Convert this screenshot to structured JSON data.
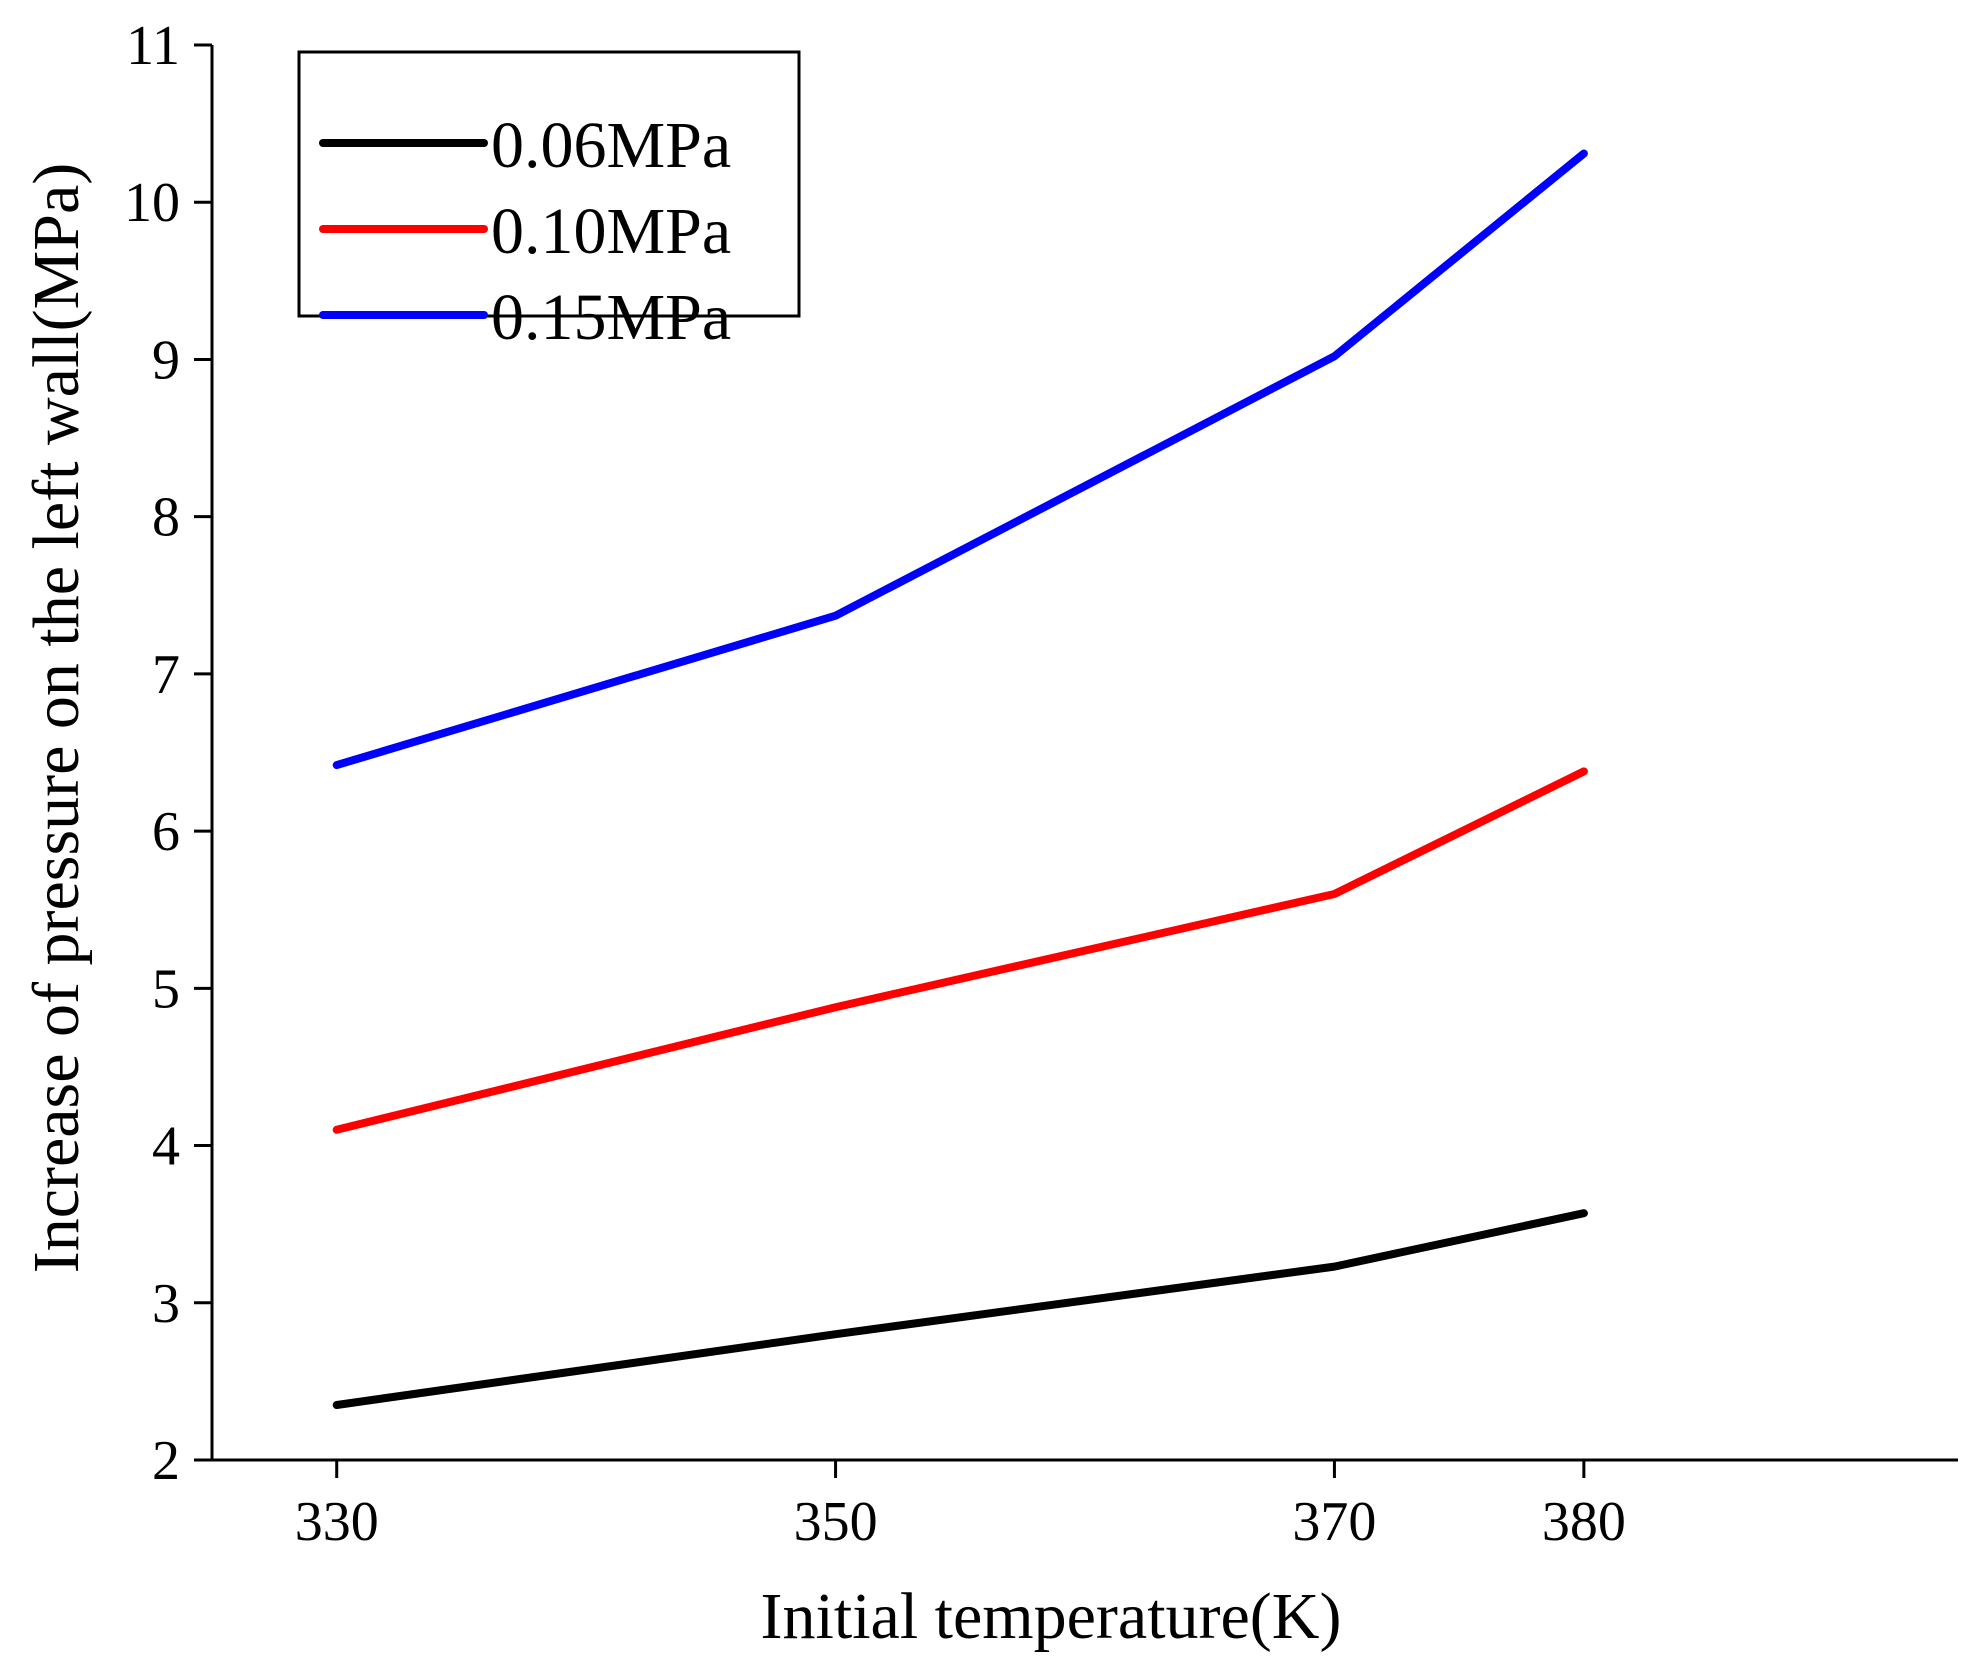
{
  "chart_data": {
    "type": "line",
    "title": "",
    "xlabel": "Initial temperature(K)",
    "ylabel": "Increase of pressure on the left wall(MPa)",
    "xlim": [
      325,
      395
    ],
    "ylim": [
      2,
      11
    ],
    "xticks": [
      330,
      350,
      370,
      380
    ],
    "xtick_labels": [
      "330",
      "350",
      "370",
      "380"
    ],
    "yticks": [
      2,
      3,
      4,
      5,
      6,
      7,
      8,
      9,
      10,
      11
    ],
    "ytick_labels": [
      "2",
      "3",
      "4",
      "5",
      "6",
      "7",
      "8",
      "9",
      "10",
      "11"
    ],
    "grid": false,
    "legend_position": "top-left",
    "x": [
      330,
      350,
      370,
      380
    ],
    "series": [
      {
        "name": "0.06MPa",
        "color": "#000000",
        "values": [
          2.35,
          2.8,
          3.23,
          3.57
        ]
      },
      {
        "name": "0.10MPa",
        "color": "#ff0000",
        "values": [
          4.1,
          4.88,
          5.6,
          6.38
        ]
      },
      {
        "name": "0.15MPa",
        "color": "#0000ff",
        "values": [
          6.42,
          7.37,
          9.02,
          10.31
        ]
      }
    ]
  }
}
